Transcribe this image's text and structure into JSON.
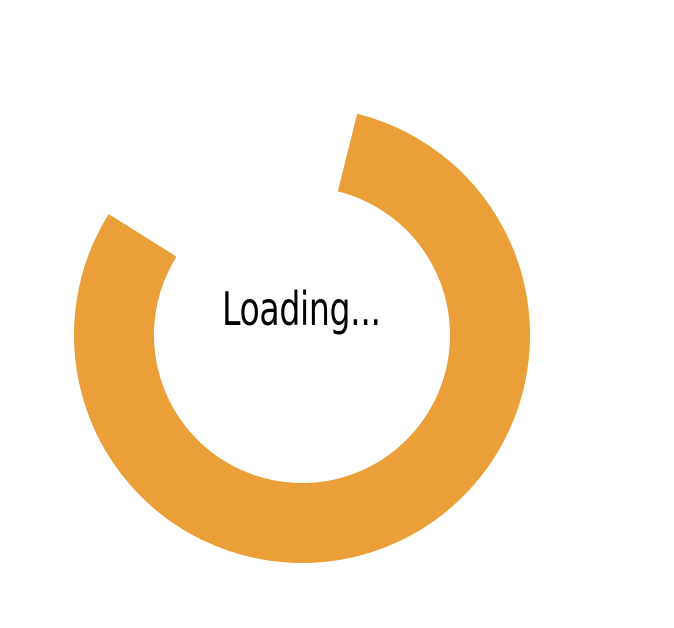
{
  "loading": {
    "text": "Loading...",
    "spinner_color": "#EA9F38",
    "progress_fraction": 0.8
  }
}
